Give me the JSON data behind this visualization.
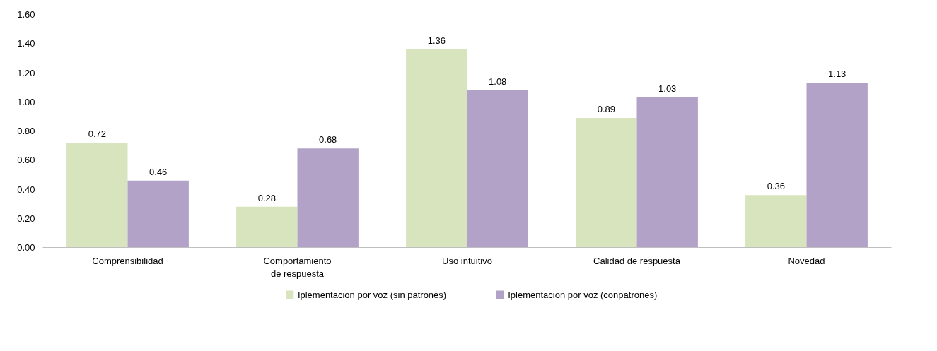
{
  "chart_data": {
    "type": "bar",
    "categories": [
      "Comprensibilidad",
      "Comportamiento\nde respuesta",
      "Uso intuitivo",
      "Calidad de respuesta",
      "Novedad"
    ],
    "series": [
      {
        "name": "Iplementacion por voz (sin patrones)",
        "color": "#d7e4bd",
        "values": [
          0.72,
          0.28,
          1.36,
          0.89,
          0.36
        ]
      },
      {
        "name": "Iplementacion por voz (conpatrones)",
        "color": "#b3a2c7",
        "values": [
          0.46,
          0.68,
          1.08,
          1.03,
          1.13
        ]
      }
    ],
    "ylim": [
      0,
      1.6
    ],
    "yticks": [
      {
        "value": 0,
        "label": "0.00"
      },
      {
        "value": 0.2,
        "label": "0.20"
      },
      {
        "value": 0.4,
        "label": "0.40"
      },
      {
        "value": 0.6,
        "label": "0.60"
      },
      {
        "value": 0.8,
        "label": "0.80"
      },
      {
        "value": 1.0,
        "label": "1.00"
      },
      {
        "value": 1.2,
        "label": "1.20"
      },
      {
        "value": 1.4,
        "label": "1.40"
      },
      {
        "value": 1.6,
        "label": "1.60"
      }
    ],
    "data_labels": true,
    "grid": false,
    "legend": "bottom"
  }
}
